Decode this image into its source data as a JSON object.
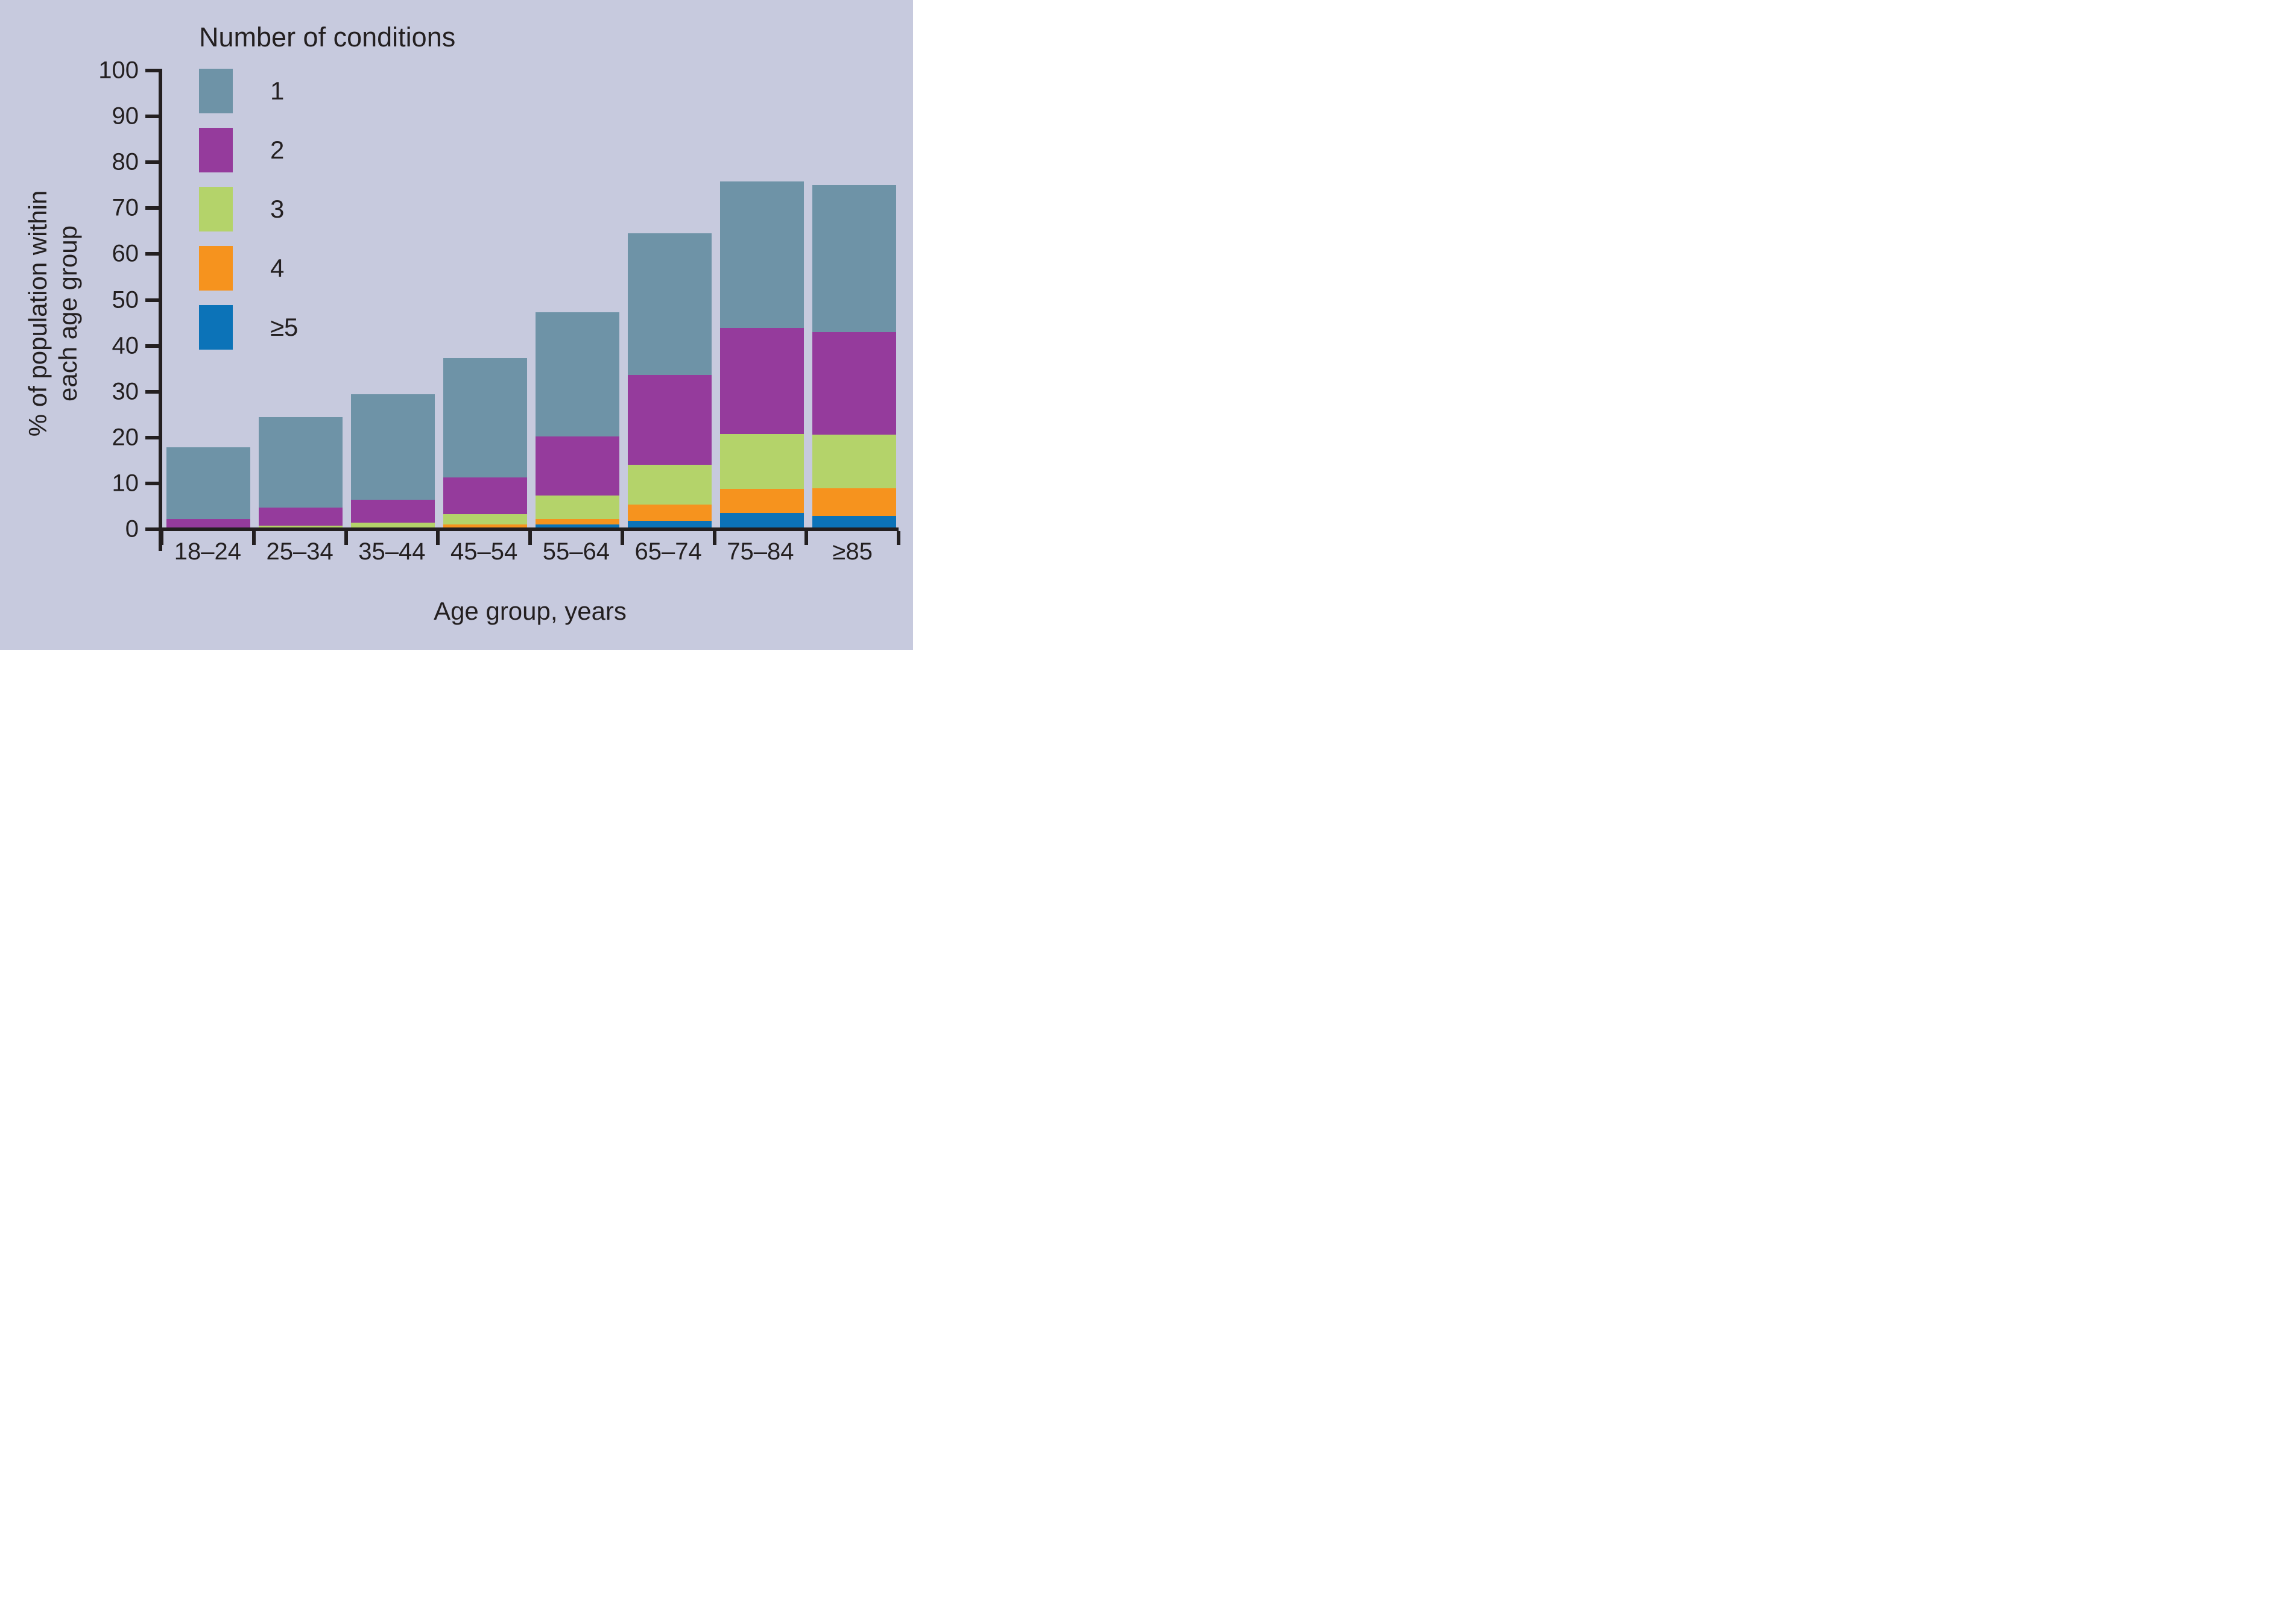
{
  "figure": {
    "background": "#c7cade",
    "ink": "#231f20"
  },
  "legend": {
    "title": "Number of conditions",
    "items": [
      {
        "label": "1",
        "color": "#6e93a7"
      },
      {
        "label": "2",
        "color": "#953b9c"
      },
      {
        "label": "3",
        "color": "#b4d36a"
      },
      {
        "label": "4",
        "color": "#f6931e"
      },
      {
        "label": "≥5",
        "color": "#0c73b8"
      }
    ]
  },
  "axes": {
    "y": {
      "title_lines": [
        "% of population within",
        "each age group"
      ],
      "min": 0,
      "max": 100,
      "step": 10,
      "tick_labels": [
        "0",
        "10",
        "20",
        "30",
        "40",
        "50",
        "60",
        "70",
        "80",
        "90",
        "100"
      ]
    },
    "x": {
      "title": "Age group, years"
    }
  },
  "chart_data": {
    "type": "bar",
    "stacked": true,
    "title": "",
    "xlabel": "Age group, years",
    "ylabel": "% of population within each age group",
    "ylim": [
      0,
      100
    ],
    "grid": false,
    "legend_position": "top-left-inside",
    "legend_title": "Number of conditions",
    "categories": [
      "18–24",
      "25–34",
      "35–44",
      "45–54",
      "55–64",
      "65–74",
      "75–84",
      "≥85"
    ],
    "stack_order_bottom_to_top": [
      "≥5",
      "4",
      "3",
      "2",
      "1"
    ],
    "series": [
      {
        "name": "≥5",
        "color": "#0c73b8",
        "values": [
          0,
          0,
          0,
          0.2,
          1.1,
          1.8,
          3.5,
          2.9
        ]
      },
      {
        "name": "4",
        "color": "#f6931e",
        "values": [
          0,
          0,
          0.2,
          0.8,
          1.2,
          3.6,
          5.3,
          6.1
        ]
      },
      {
        "name": "3",
        "color": "#b4d36a",
        "values": [
          0.2,
          0.8,
          1.3,
          2.3,
          5.1,
          8.7,
          12.0,
          11.6
        ]
      },
      {
        "name": "2",
        "color": "#953b9c",
        "values": [
          2.1,
          3.9,
          5.0,
          8.0,
          12.9,
          19.6,
          23.1,
          22.4
        ]
      },
      {
        "name": "1",
        "color": "#6e93a7",
        "values": [
          15.6,
          19.7,
          22.9,
          26.0,
          27.0,
          30.8,
          31.9,
          32.0
        ]
      }
    ],
    "totals": [
      17.9,
      24.4,
      29.4,
      37.3,
      47.3,
      64.5,
      75.8,
      75.0
    ]
  }
}
